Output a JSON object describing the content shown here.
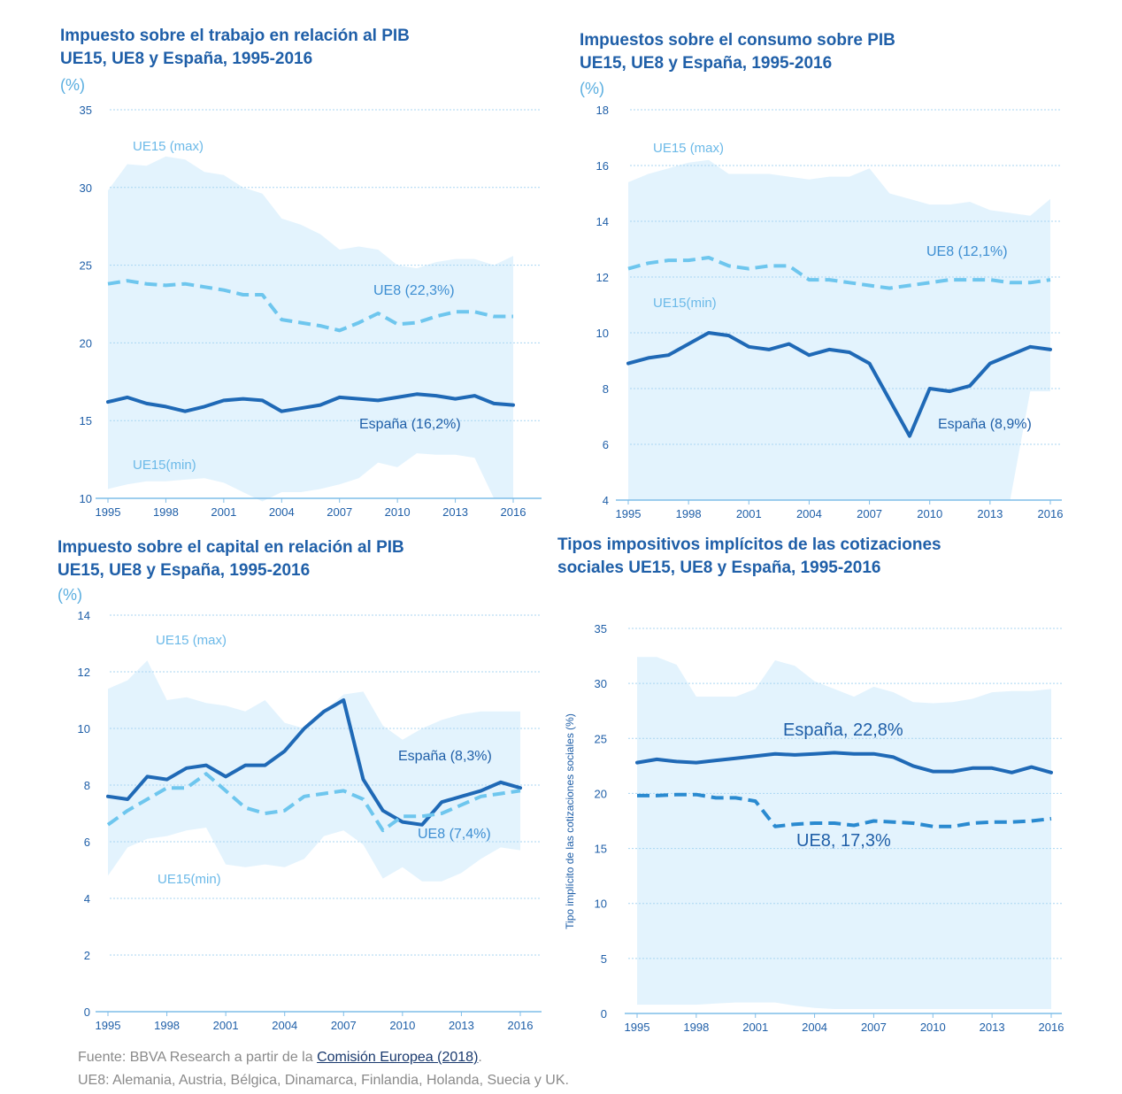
{
  "chart_data": [
    {
      "id": "trabajo",
      "type": "line",
      "title_lines": [
        "Impuesto sobre el trabajo en relación al PIB",
        "UE15, UE8 y España, 1995-2016"
      ],
      "unit": "(%)",
      "ylabel": "",
      "ylim": [
        10,
        35
      ],
      "yticks": [
        10,
        15,
        20,
        25,
        30,
        35
      ],
      "xlim": [
        1995,
        2016
      ],
      "xticks": [
        1995,
        1998,
        2001,
        2004,
        2007,
        2010,
        2013,
        2016
      ],
      "x": [
        1995,
        1996,
        1997,
        1998,
        1999,
        2000,
        2001,
        2002,
        2003,
        2004,
        2005,
        2006,
        2007,
        2008,
        2009,
        2010,
        2011,
        2012,
        2013,
        2014,
        2015,
        2016
      ],
      "band_max": [
        29.8,
        31.5,
        31.4,
        32.0,
        31.8,
        31.0,
        30.8,
        30.0,
        29.6,
        28.0,
        27.6,
        27.0,
        26.0,
        26.2,
        26.0,
        25.0,
        24.8,
        25.2,
        25.4,
        25.4,
        25.0,
        25.6
      ],
      "band_min": [
        10.6,
        10.9,
        11.1,
        11.1,
        11.2,
        11.3,
        11.0,
        10.4,
        9.8,
        10.4,
        10.4,
        10.6,
        10.9,
        11.3,
        12.3,
        12.0,
        12.9,
        12.8,
        12.8,
        12.6,
        10.0,
        10.0
      ],
      "band_max_label": "UE15 (max)",
      "band_min_label": "UE15(min)",
      "series": [
        {
          "name": "España (16,2%)",
          "style": "solid",
          "values": [
            16.2,
            16.5,
            16.1,
            15.9,
            15.6,
            15.9,
            16.3,
            16.4,
            16.3,
            15.6,
            15.8,
            16.0,
            16.5,
            16.4,
            16.3,
            16.5,
            16.7,
            16.6,
            16.4,
            16.6,
            16.1,
            16.0
          ]
        },
        {
          "name": "UE8 (22,3%)",
          "style": "dashed",
          "values": [
            23.8,
            24.0,
            23.8,
            23.7,
            23.8,
            23.6,
            23.4,
            23.1,
            23.1,
            21.5,
            21.3,
            21.1,
            20.8,
            21.3,
            21.9,
            21.2,
            21.3,
            21.7,
            22.0,
            22.0,
            21.7,
            21.7
          ]
        }
      ],
      "colors": {
        "band": "#e3f3fd",
        "solid": "#1f69b6",
        "dashed": "#6ec6ee"
      }
    },
    {
      "id": "consumo",
      "type": "line",
      "title_lines": [
        "Impuestos sobre el consumo  sobre PIB",
        "UE15, UE8 y España, 1995-2016"
      ],
      "unit": "(%)",
      "ylabel": "",
      "ylim": [
        4,
        18
      ],
      "yticks": [
        4,
        6,
        8,
        10,
        12,
        14,
        16,
        18
      ],
      "xlim": [
        1995,
        2016
      ],
      "xticks": [
        1995,
        1998,
        2001,
        2004,
        2007,
        2010,
        2013,
        2016
      ],
      "x": [
        1995,
        1996,
        1997,
        1998,
        1999,
        2000,
        2001,
        2002,
        2003,
        2004,
        2005,
        2006,
        2007,
        2008,
        2009,
        2010,
        2011,
        2012,
        2013,
        2014,
        2015,
        2016
      ],
      "band_max": [
        15.4,
        15.7,
        15.9,
        16.1,
        16.2,
        15.7,
        15.7,
        15.7,
        15.6,
        15.5,
        15.6,
        15.6,
        15.9,
        15.0,
        14.8,
        14.6,
        14.6,
        14.7,
        14.4,
        14.3,
        14.2,
        14.8
      ],
      "band_min": [
        4.0,
        4.0,
        4.0,
        4.0,
        4.0,
        4.0,
        4.0,
        4.0,
        4.0,
        4.0,
        4.0,
        4.0,
        4.0,
        4.0,
        4.0,
        4.0,
        4.0,
        4.0,
        4.0,
        4.0,
        7.9,
        7.9
      ],
      "band_max_label": "UE15 (max)",
      "band_min_label": "UE15(min)",
      "series": [
        {
          "name": "España (8,9%)",
          "style": "solid",
          "values": [
            8.9,
            9.1,
            9.2,
            9.6,
            10.0,
            9.9,
            9.5,
            9.4,
            9.6,
            9.2,
            9.4,
            9.3,
            8.9,
            7.6,
            6.3,
            8.0,
            7.9,
            8.1,
            8.9,
            9.2,
            9.5,
            9.4
          ]
        },
        {
          "name": "UE8 (12,1%)",
          "style": "dashed",
          "values": [
            12.3,
            12.5,
            12.6,
            12.6,
            12.7,
            12.4,
            12.3,
            12.4,
            12.4,
            11.9,
            11.9,
            11.8,
            11.7,
            11.6,
            11.7,
            11.8,
            11.9,
            11.9,
            11.9,
            11.8,
            11.8,
            11.9
          ]
        }
      ],
      "colors": {
        "band": "#e3f3fd",
        "solid": "#1f69b6",
        "dashed": "#6ec6ee"
      }
    },
    {
      "id": "capital",
      "type": "line",
      "title_lines": [
        "Impuesto sobre el capital en relación al PIB",
        "UE15, UE8 y España, 1995-2016"
      ],
      "unit": "(%)",
      "ylabel": "",
      "ylim": [
        0,
        14
      ],
      "yticks": [
        0,
        2,
        4,
        6,
        8,
        10,
        12,
        14
      ],
      "xlim": [
        1995,
        2016
      ],
      "xticks": [
        1995,
        1998,
        2001,
        2004,
        2007,
        2010,
        2013,
        2016
      ],
      "x": [
        1995,
        1996,
        1997,
        1998,
        1999,
        2000,
        2001,
        2002,
        2003,
        2004,
        2005,
        2006,
        2007,
        2008,
        2009,
        2010,
        2011,
        2012,
        2013,
        2014,
        2015,
        2016
      ],
      "band_max": [
        11.4,
        11.7,
        12.4,
        11.0,
        11.1,
        10.9,
        10.8,
        10.6,
        11.0,
        10.2,
        10.0,
        10.6,
        11.2,
        11.3,
        10.1,
        9.6,
        10.0,
        10.3,
        10.5,
        10.6,
        10.6,
        10.6
      ],
      "band_min": [
        4.8,
        5.8,
        6.1,
        6.2,
        6.4,
        6.5,
        5.2,
        5.1,
        5.2,
        5.1,
        5.4,
        6.2,
        6.4,
        5.9,
        4.7,
        5.1,
        4.6,
        4.6,
        4.9,
        5.4,
        5.8,
        5.7
      ],
      "band_max_label": "UE15 (max)",
      "band_min_label": "UE15(min)",
      "series": [
        {
          "name": "España (8,3%)",
          "style": "solid",
          "values": [
            7.6,
            7.5,
            8.3,
            8.2,
            8.6,
            8.7,
            8.3,
            8.7,
            8.7,
            9.2,
            10.0,
            10.6,
            11.0,
            8.2,
            7.1,
            6.7,
            6.6,
            7.4,
            7.6,
            7.8,
            8.1,
            7.9
          ]
        },
        {
          "name": "UE8 (7,4%)",
          "style": "dashed",
          "values": [
            6.6,
            7.1,
            7.5,
            7.9,
            7.9,
            8.4,
            7.8,
            7.2,
            7.0,
            7.1,
            7.6,
            7.7,
            7.8,
            7.5,
            6.4,
            6.9,
            6.9,
            7.0,
            7.3,
            7.6,
            7.7,
            7.8
          ]
        }
      ],
      "colors": {
        "band": "#e3f3fd",
        "solid": "#1f69b6",
        "dashed": "#6ec6ee"
      }
    },
    {
      "id": "cotizaciones",
      "type": "line",
      "title_lines": [
        "Tipos impositivos implícitos de las cotizaciones",
        "sociales UE15, UE8 y España, 1995-2016"
      ],
      "unit": "",
      "ylabel": "Tipo implícito de las cotizaciones sociales (%)",
      "ylim": [
        0,
        35
      ],
      "yticks": [
        0,
        5,
        10,
        15,
        20,
        25,
        30,
        35
      ],
      "xlim": [
        1995,
        2016
      ],
      "xticks": [
        1995,
        1998,
        2001,
        2004,
        2007,
        2010,
        2013,
        2016
      ],
      "x": [
        1995,
        1996,
        1997,
        1998,
        1999,
        2000,
        2001,
        2002,
        2003,
        2004,
        2005,
        2006,
        2007,
        2008,
        2009,
        2010,
        2011,
        2012,
        2013,
        2014,
        2015,
        2016
      ],
      "band_max": [
        32.4,
        32.4,
        31.7,
        28.8,
        28.8,
        28.8,
        29.5,
        32.1,
        31.6,
        30.2,
        29.5,
        28.8,
        29.7,
        29.2,
        28.3,
        28.2,
        28.3,
        28.6,
        29.2,
        29.3,
        29.3,
        29.5
      ],
      "band_min": [
        0.8,
        0.8,
        0.8,
        0.8,
        0.9,
        1.0,
        1.0,
        1.0,
        0.7,
        0.5,
        0.4,
        0.4,
        0.4,
        0.4,
        0.4,
        0.4,
        0.4,
        0.4,
        0.4,
        0.4,
        0.4,
        0.4
      ],
      "band_max_label": "",
      "band_min_label": "",
      "series": [
        {
          "name": "España, 22,8%",
          "style": "solid",
          "values": [
            22.8,
            23.1,
            22.9,
            22.8,
            23.0,
            23.2,
            23.4,
            23.6,
            23.5,
            23.6,
            23.7,
            23.6,
            23.6,
            23.3,
            22.5,
            22.0,
            22.0,
            22.3,
            22.3,
            21.9,
            22.4,
            21.9
          ]
        },
        {
          "name": "UE8, 17,3%",
          "style": "dashed",
          "values": [
            19.8,
            19.8,
            19.9,
            19.9,
            19.6,
            19.6,
            19.3,
            17.0,
            17.2,
            17.3,
            17.3,
            17.1,
            17.5,
            17.4,
            17.3,
            17.0,
            17.0,
            17.3,
            17.4,
            17.4,
            17.5,
            17.7
          ]
        }
      ],
      "colors": {
        "band": "#e3f3fd",
        "solid": "#1f69b6",
        "dashed": "#2a8ad0"
      }
    }
  ],
  "footer": {
    "source_prefix": "Fuente: BBVA Research a partir de la ",
    "source_link": "Comisión Europea (2018)",
    "source_suffix": ".",
    "note": "UE8: Alemania, Austria, Bélgica, Dinamarca, Finlandia, Holanda, Suecia y UK."
  }
}
